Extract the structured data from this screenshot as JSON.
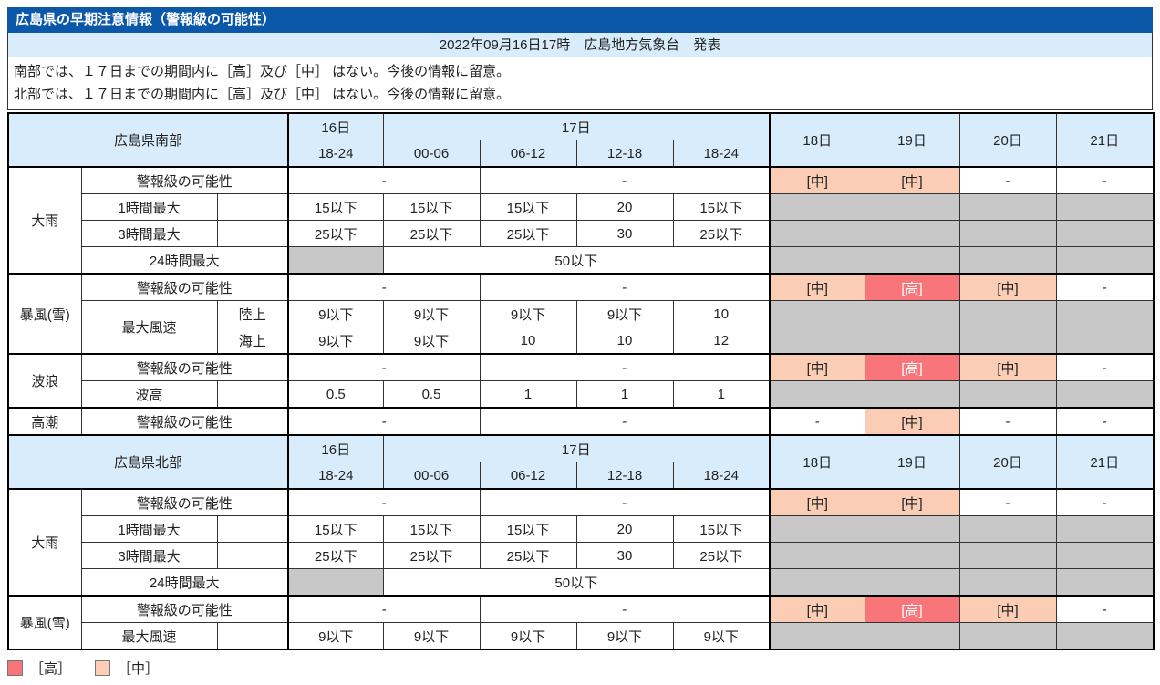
{
  "title": "広島県の早期注意情報（警報級の可能性）",
  "issued": "2022年09月16日17時　広島地方気象台　発表",
  "notices": [
    "南部では、１７日までの期間内に［高］及び［中］ はない。今後の情報に留意。",
    "北部では、１７日までの期間内に［高］及び［中］ はない。今後の情報に留意。"
  ],
  "colors": {
    "title_bg": "#0b58a8",
    "title_text": "#ffffff",
    "header_bg": "#d9ecfb",
    "na_bg": "#c8c8c8",
    "mid_bg": "#fbcdb5",
    "mid_text": "#222222",
    "high_bg": "#f8757a",
    "high_text": "#ffffff"
  },
  "legend": [
    {
      "key": "high",
      "label": "［高］"
    },
    {
      "key": "mid",
      "label": "［中］"
    }
  ],
  "day_headers": {
    "day16": "16日",
    "day17": "17日",
    "slots": [
      "18-24",
      "00-06",
      "06-12",
      "12-18",
      "18-24"
    ],
    "days": [
      "18日",
      "19日",
      "20日",
      "21日"
    ]
  },
  "sections": [
    {
      "region": "広島県南部",
      "groups": [
        {
          "hazard": "大雨",
          "rows": [
            {
              "type": "possibility",
              "label": "警報級の可能性",
              "left": "-",
              "right": "-",
              "days": [
                [
                  "[中]",
                  "mid"
                ],
                [
                  "[中]",
                  "mid"
                ],
                [
                  "-",
                  "none"
                ],
                [
                  "-",
                  "none"
                ]
              ]
            },
            {
              "type": "values",
              "label": "1時間最大",
              "sub": "",
              "vals": [
                "15以下",
                "15以下",
                "15以下",
                "20",
                "15以下"
              ],
              "day_mode": "na"
            },
            {
              "type": "values",
              "label": "3時間最大",
              "sub": "",
              "vals": [
                "25以下",
                "25以下",
                "25以下",
                "30",
                "25以下"
              ],
              "day_mode": "na"
            },
            {
              "type": "span24",
              "label": "24時間最大",
              "val": "50以下",
              "day_mode": "na"
            }
          ]
        },
        {
          "hazard": "暴風(雪)",
          "rows": [
            {
              "type": "possibility",
              "label": "警報級の可能性",
              "left": "-",
              "right": "-",
              "days": [
                [
                  "[中]",
                  "mid"
                ],
                [
                  "[高]",
                  "high"
                ],
                [
                  "[中]",
                  "mid"
                ],
                [
                  "-",
                  "none"
                ]
              ]
            },
            {
              "type": "values",
              "label": "最大風速",
              "label_rowspan": 2,
              "sub": "陸上",
              "vals": [
                "9以下",
                "9以下",
                "9以下",
                "9以下",
                "10"
              ],
              "day_mode": "na2"
            },
            {
              "type": "values",
              "label": "",
              "sub": "海上",
              "vals": [
                "9以下",
                "9以下",
                "10",
                "10",
                "12"
              ],
              "day_mode": "skip"
            }
          ]
        },
        {
          "hazard": "波浪",
          "rows": [
            {
              "type": "possibility",
              "label": "警報級の可能性",
              "left": "-",
              "right": "-",
              "days": [
                [
                  "[中]",
                  "mid"
                ],
                [
                  "[高]",
                  "high"
                ],
                [
                  "[中]",
                  "mid"
                ],
                [
                  "-",
                  "none"
                ]
              ]
            },
            {
              "type": "values",
              "label": "波高",
              "sub": "",
              "vals": [
                "0.5",
                "0.5",
                "1",
                "1",
                "1"
              ],
              "day_mode": "na"
            }
          ]
        },
        {
          "hazard": "高潮",
          "rows": [
            {
              "type": "possibility",
              "label": "警報級の可能性",
              "left": "-",
              "right": "-",
              "days": [
                [
                  "-",
                  "none"
                ],
                [
                  "[中]",
                  "mid"
                ],
                [
                  "-",
                  "none"
                ],
                [
                  "-",
                  "none"
                ]
              ]
            }
          ]
        }
      ]
    },
    {
      "region": "広島県北部",
      "groups": [
        {
          "hazard": "大雨",
          "rows": [
            {
              "type": "possibility",
              "label": "警報級の可能性",
              "left": "-",
              "right": "-",
              "days": [
                [
                  "[中]",
                  "mid"
                ],
                [
                  "[中]",
                  "mid"
                ],
                [
                  "-",
                  "none"
                ],
                [
                  "-",
                  "none"
                ]
              ]
            },
            {
              "type": "values",
              "label": "1時間最大",
              "sub": "",
              "vals": [
                "15以下",
                "15以下",
                "15以下",
                "20",
                "15以下"
              ],
              "day_mode": "na"
            },
            {
              "type": "values",
              "label": "3時間最大",
              "sub": "",
              "vals": [
                "25以下",
                "25以下",
                "25以下",
                "30",
                "25以下"
              ],
              "day_mode": "na"
            },
            {
              "type": "span24",
              "label": "24時間最大",
              "val": "50以下",
              "day_mode": "na"
            }
          ]
        },
        {
          "hazard": "暴風(雪)",
          "rows": [
            {
              "type": "possibility",
              "label": "警報級の可能性",
              "left": "-",
              "right": "-",
              "days": [
                [
                  "[中]",
                  "mid"
                ],
                [
                  "[高]",
                  "high"
                ],
                [
                  "[中]",
                  "mid"
                ],
                [
                  "-",
                  "none"
                ]
              ]
            },
            {
              "type": "values",
              "label": "最大風速",
              "sub": "",
              "vals": [
                "9以下",
                "9以下",
                "9以下",
                "9以下",
                "9以下"
              ],
              "day_mode": "na"
            }
          ]
        }
      ]
    }
  ]
}
